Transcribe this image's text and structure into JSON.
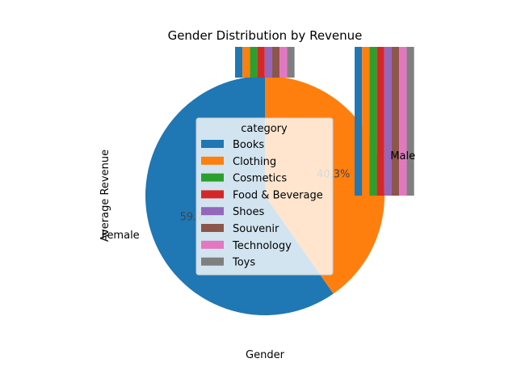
{
  "chart_data": {
    "type": "pie",
    "title": "Gender Distribution by Revenue",
    "xlabel": "Gender",
    "ylabel": "Average Revenue",
    "slices": [
      {
        "label": "Female",
        "value": 59.7,
        "pct_label": "59.7%",
        "color": "#1f77b4"
      },
      {
        "label": "Male",
        "value": 40.3,
        "pct_label": "40.3%",
        "color": "#ff7f0e"
      }
    ],
    "overlay_bars": {
      "note_type": "bar",
      "groups": [
        "Female",
        "Male"
      ],
      "series": [
        {
          "name": "Books",
          "color": "#1f77b4"
        },
        {
          "name": "Clothing",
          "color": "#ff7f0e"
        },
        {
          "name": "Cosmetics",
          "color": "#2ca02c"
        },
        {
          "name": "Food & Beverage",
          "color": "#d62728"
        },
        {
          "name": "Shoes",
          "color": "#9467bd"
        },
        {
          "name": "Souvenir",
          "color": "#8c564b"
        },
        {
          "name": "Technology",
          "color": "#e377c2"
        },
        {
          "name": "Toys",
          "color": "#7f7f7f"
        }
      ]
    },
    "legend": {
      "title": "category",
      "placement": "center"
    }
  }
}
